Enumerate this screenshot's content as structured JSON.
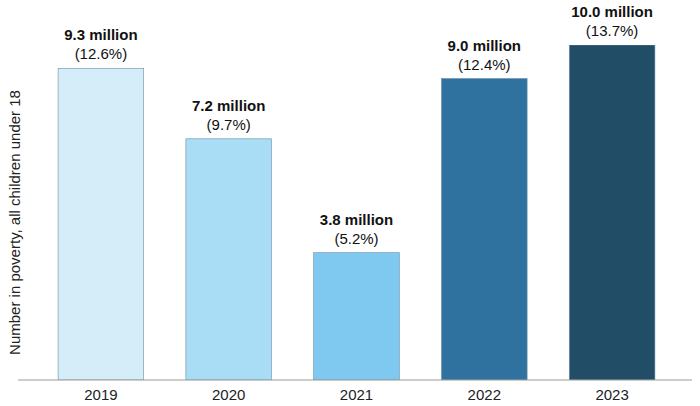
{
  "chart_data": {
    "type": "bar",
    "y_label": "Number in poverty, all children under 18",
    "categories": [
      "2019",
      "2020",
      "2021",
      "2022",
      "2023"
    ],
    "values": [
      9.3,
      7.2,
      3.8,
      9.0,
      10.0
    ],
    "value_labels": [
      "9.3 million",
      "7.2 million",
      "3.8 million",
      "9.0 million",
      "10.0 million"
    ],
    "shares": [
      12.6,
      9.7,
      5.2,
      12.4,
      13.7
    ],
    "share_labels": [
      "(12.6%)",
      "(9.7%)",
      "(5.2%)",
      "(12.4%)",
      "(13.7%)"
    ],
    "colors": [
      "#d4edf8",
      "#a9dcf5",
      "#7fc8ef",
      "#2f72a0",
      "#214e66"
    ],
    "ylim": [
      0,
      10
    ],
    "data_labels": true,
    "tick_labels": "x",
    "grid": false
  }
}
